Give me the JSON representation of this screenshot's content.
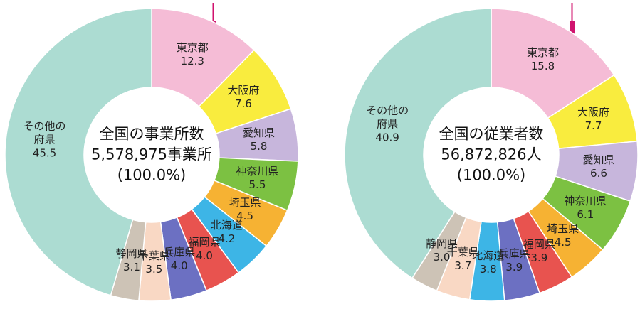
{
  "chart_data": [
    {
      "type": "pie",
      "center_text": [
        "全国の事業所数",
        "5,578,975事業所",
        "(100.0%)"
      ],
      "categories": [
        "東京都",
        "大阪府",
        "愛知県",
        "神奈川県",
        "埼玉県",
        "北海道",
        "福岡県",
        "兵庫県",
        "千葉県",
        "静岡県",
        "その他の府県"
      ],
      "values": [
        12.3,
        7.6,
        5.8,
        5.5,
        4.5,
        4.2,
        4.0,
        4.0,
        3.5,
        3.1,
        45.5
      ],
      "value_labels": [
        "12.3",
        "7.6",
        "5.8",
        "5.5",
        "4.5",
        "4.2",
        "4.0",
        "4.0",
        "3.5",
        "3.1",
        "45.5"
      ],
      "colors": [
        "#f5bcd6",
        "#f9ec3e",
        "#c7b6dc",
        "#7cc142",
        "#f6b233",
        "#3db5e6",
        "#e8534f",
        "#6c70c2",
        "#f9d8c4",
        "#cdc3b6",
        "#acdcd2"
      ]
    },
    {
      "type": "pie",
      "center_text": [
        "全国の従業者数",
        "56,872,826人",
        "(100.0%)"
      ],
      "categories": [
        "東京都",
        "大阪府",
        "愛知県",
        "神奈川県",
        "埼玉県",
        "福岡県",
        "兵庫県",
        "北海道",
        "千葉県",
        "静岡県",
        "その他の府県"
      ],
      "values": [
        15.8,
        7.7,
        6.6,
        6.1,
        4.5,
        3.9,
        3.9,
        3.8,
        3.7,
        3.0,
        40.9
      ],
      "value_labels": [
        "15.8",
        "7.7",
        "6.6",
        "6.1",
        "4.5",
        "3.9",
        "3.9",
        "3.8",
        "3.7",
        "3.0",
        "40.9"
      ],
      "colors": [
        "#f5bcd6",
        "#f9ec3e",
        "#c7b6dc",
        "#7cc142",
        "#f6b233",
        "#e8534f",
        "#6c70c2",
        "#3db5e6",
        "#f9d8c4",
        "#cdc3b6",
        "#acdcd2"
      ]
    }
  ]
}
